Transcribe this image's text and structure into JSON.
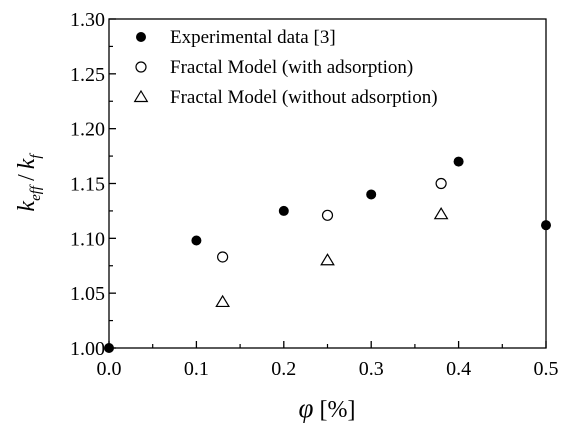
{
  "chart_data": {
    "type": "scatter",
    "title": "",
    "xlabel": "φ [%]",
    "xlabel_symbol": "φ",
    "xlabel_unit": "[%]",
    "ylabel": "k_eff / k_f",
    "ylabel_parts": {
      "k1": "k",
      "sub1": "eff",
      "slash": "/",
      "k2": "k",
      "sub2": "f"
    },
    "xlim": [
      0.0,
      0.5
    ],
    "ylim": [
      1.0,
      1.3
    ],
    "xticks": [
      0.0,
      0.1,
      0.2,
      0.3,
      0.4,
      0.5
    ],
    "xtick_labels": [
      "0.0",
      "0.1",
      "0.2",
      "0.3",
      "0.4",
      "0.5"
    ],
    "yticks": [
      1.0,
      1.05,
      1.1,
      1.15,
      1.2,
      1.25,
      1.3
    ],
    "ytick_labels": [
      "1.00",
      "1.05",
      "1.10",
      "1.15",
      "1.20",
      "1.25",
      "1.30"
    ],
    "grid": false,
    "legend_position": "top-left",
    "series": [
      {
        "name": "Experimental data [3]",
        "marker": "filled-circle",
        "color": "#000000",
        "points": [
          {
            "x": 0.0,
            "y": 1.0
          },
          {
            "x": 0.1,
            "y": 1.098
          },
          {
            "x": 0.2,
            "y": 1.125
          },
          {
            "x": 0.3,
            "y": 1.14
          },
          {
            "x": 0.4,
            "y": 1.17
          },
          {
            "x": 0.5,
            "y": 1.112
          }
        ]
      },
      {
        "name": "Fractal Model (with adsorption)",
        "marker": "open-circle",
        "color": "#000000",
        "points": [
          {
            "x": 0.13,
            "y": 1.083
          },
          {
            "x": 0.25,
            "y": 1.121
          },
          {
            "x": 0.38,
            "y": 1.15
          }
        ]
      },
      {
        "name": "Fractal Model (without adsorption)",
        "marker": "open-triangle",
        "color": "#000000",
        "points": [
          {
            "x": 0.13,
            "y": 1.042
          },
          {
            "x": 0.25,
            "y": 1.08
          },
          {
            "x": 0.38,
            "y": 1.122
          }
        ]
      }
    ]
  }
}
